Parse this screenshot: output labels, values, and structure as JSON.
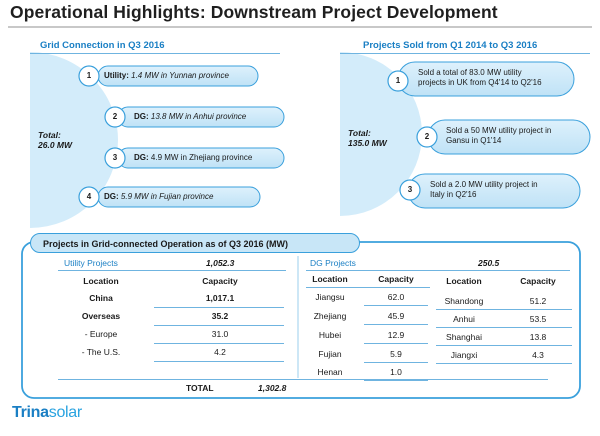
{
  "title": "Operational Highlights: Downstream Project Development",
  "left": {
    "header": "Grid Connection in Q3 2016",
    "total_line1": "Total:",
    "total_line2": "26.0 MW",
    "items": [
      {
        "num": "1",
        "label": "Utility:",
        "text": "1.4 MW in Yunnan province"
      },
      {
        "num": "2",
        "label": "DG:",
        "text": "13.8 MW in Anhui province"
      },
      {
        "num": "3",
        "label": "DG:",
        "text": "4.9 MW in Zhejiang province"
      },
      {
        "num": "4",
        "label": "DG:",
        "text": "5.9 MW in Fujian province"
      }
    ]
  },
  "right": {
    "header": "Projects Sold from Q1 2014 to Q3 2016",
    "total_line1": "Total:",
    "total_line2": "135.0 MW",
    "items": [
      {
        "num": "1",
        "line1": "Sold a total of  83.0 MW utility",
        "line2": "projects in UK from Q4'14 to Q2'16"
      },
      {
        "num": "2",
        "line1": "Sold a 50 MW utility project in",
        "line2": "Gansu in Q1'14"
      },
      {
        "num": "3",
        "line1": "Sold  a 2.0 MW utility project in",
        "line2": "Italy in Q2'16"
      }
    ]
  },
  "table": {
    "header": "Projects in Grid-connected Operation as of  Q3 2016 (MW)",
    "utility_label": "Utility Projects",
    "utility_total": "1,052.3",
    "dg_label": "DG Projects",
    "dg_total": "250.5",
    "col_location": "Location",
    "col_capacity": "Capacity",
    "utility_rows": [
      {
        "loc": "China",
        "cap": "1,017.1"
      },
      {
        "loc": "Overseas",
        "cap": "35.2"
      },
      {
        "loc": "- Europe",
        "cap": "31.0"
      },
      {
        "loc": "- The U.S.",
        "cap": "4.2"
      }
    ],
    "dg_rows_a": [
      {
        "loc": "Jiangsu",
        "cap": "62.0"
      },
      {
        "loc": "Zhejiang",
        "cap": "45.9"
      },
      {
        "loc": "Hubei",
        "cap": "12.9"
      },
      {
        "loc": "Fujian",
        "cap": "5.9"
      },
      {
        "loc": "Henan",
        "cap": "1.0"
      }
    ],
    "dg_rows_b": [
      {
        "loc": "Shandong",
        "cap": "51.2"
      },
      {
        "loc": "Anhui",
        "cap": "53.5"
      },
      {
        "loc": "Shanghai",
        "cap": "13.8"
      },
      {
        "loc": "Jiangxi",
        "cap": "4.3"
      }
    ],
    "total_label": "TOTAL",
    "total_value": "1,302.8"
  },
  "logo": {
    "part1": "Trina",
    "part2": "solar"
  },
  "colors": {
    "accent": "#1a7fc4",
    "pill_fill": "#c8e6f7",
    "pill_stroke": "#3aa0dc",
    "circle_fill": "#d3ecfa"
  }
}
